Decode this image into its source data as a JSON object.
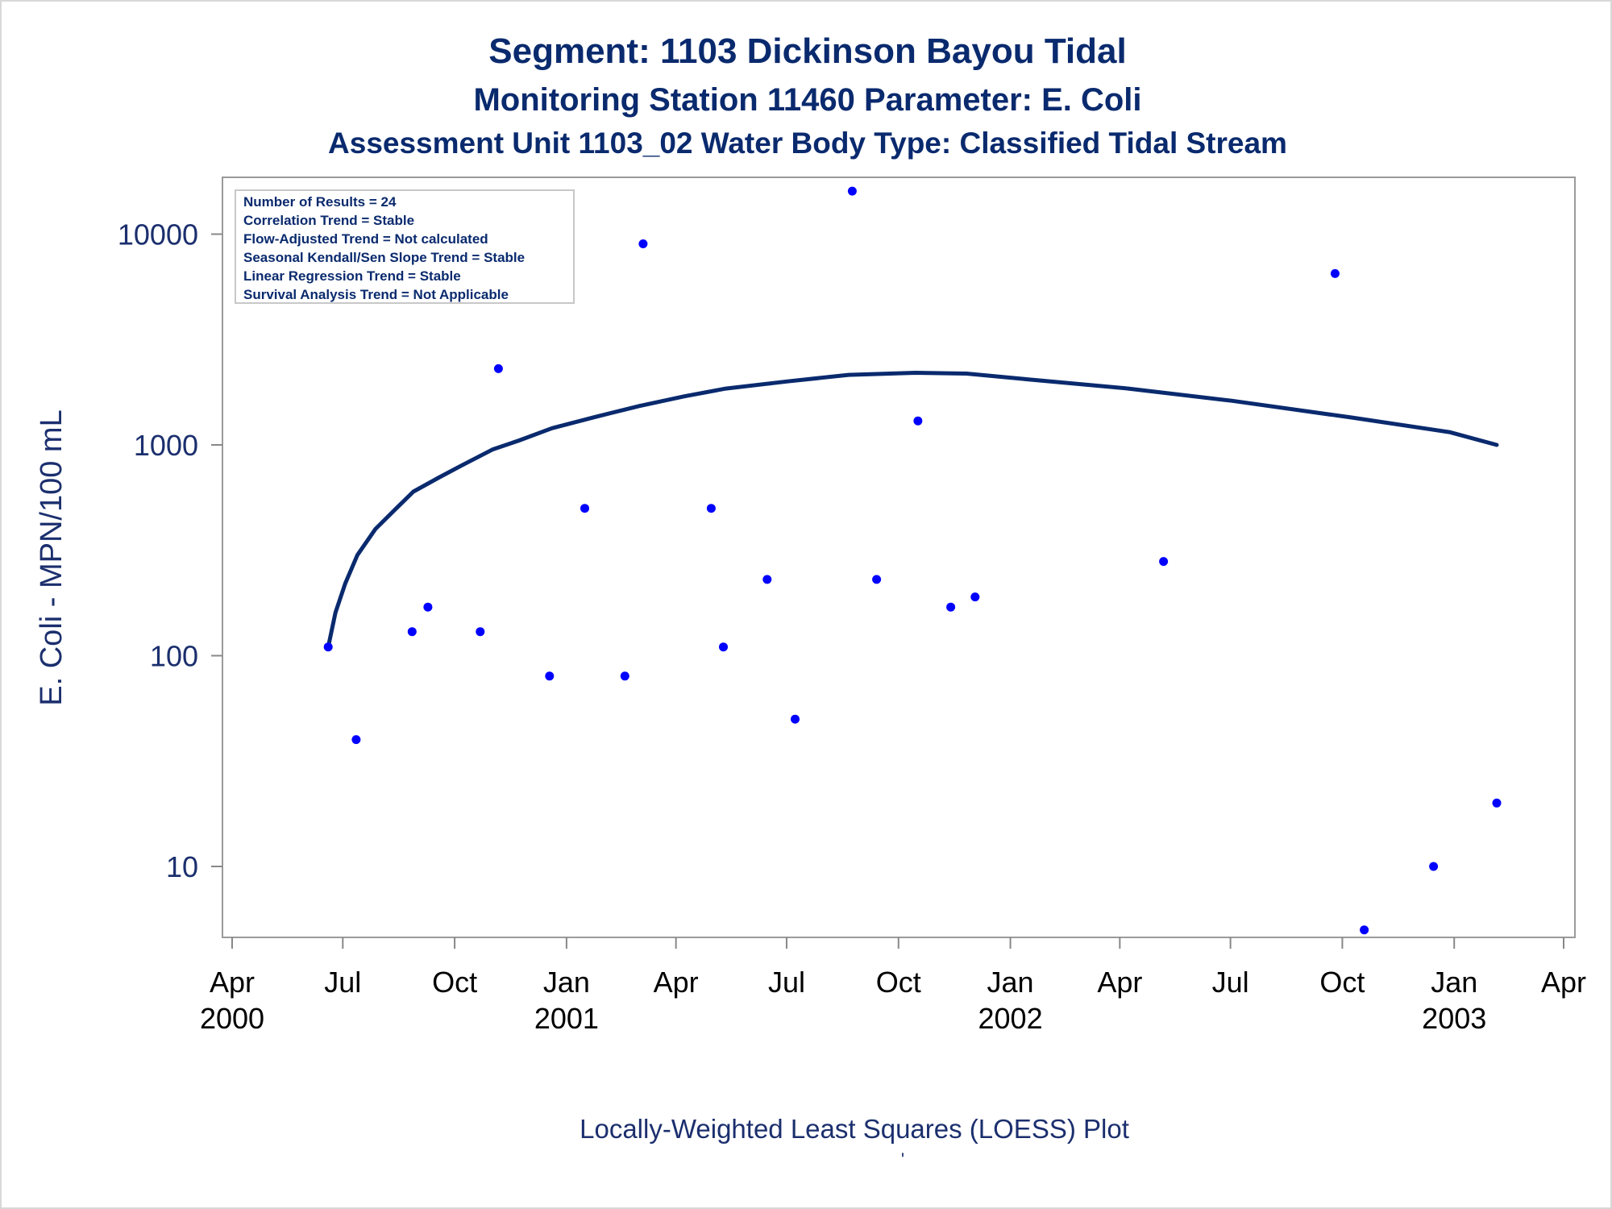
{
  "title": {
    "line1": "Segment: 1103  Dickinson Bayou Tidal",
    "line2": "Monitoring Station 11460 Parameter: E. Coli",
    "line3": "Assessment Unit 1103_02   Water Body Type: Classified Tidal Stream"
  },
  "stats": [
    "Number of Results = 24",
    "Correlation Trend = Stable",
    "Flow-Adjusted Trend = Not calculated",
    "Seasonal Kendall/Sen Slope Trend = Stable",
    "Linear Regression Trend = Stable",
    "Survival Analysis Trend = Not Applicable"
  ],
  "footnote": "Locally-Weighted Least Squares (LOESS) Plot",
  "footnote_mark": "'",
  "colors": {
    "title": "#0a2a6e",
    "axis_text": "#1b2f6e",
    "points": "#0000ff",
    "curve": "#0a2a6e",
    "frame": "#9a9a9a"
  },
  "chart_data": {
    "type": "scatter",
    "ylabel": "E. Coli - MPN/100 mL",
    "yscale": "log",
    "ylim": [
      5,
      18000
    ],
    "y_ticks": [
      10,
      100,
      1000,
      10000
    ],
    "x_range": [
      "2000-04-01",
      "2003-04-01"
    ],
    "x_ticks": [
      {
        "date": "2000-04-01",
        "label": "Apr",
        "year": "2000"
      },
      {
        "date": "2000-07-01",
        "label": "Jul",
        "year": ""
      },
      {
        "date": "2000-10-01",
        "label": "Oct",
        "year": ""
      },
      {
        "date": "2001-01-01",
        "label": "Jan",
        "year": "2001"
      },
      {
        "date": "2001-04-01",
        "label": "Apr",
        "year": ""
      },
      {
        "date": "2001-07-01",
        "label": "Jul",
        "year": ""
      },
      {
        "date": "2001-10-01",
        "label": "Oct",
        "year": ""
      },
      {
        "date": "2002-01-01",
        "label": "Jan",
        "year": "2002"
      },
      {
        "date": "2002-04-01",
        "label": "Apr",
        "year": ""
      },
      {
        "date": "2002-07-01",
        "label": "Jul",
        "year": ""
      },
      {
        "date": "2002-10-01",
        "label": "Oct",
        "year": ""
      },
      {
        "date": "2003-01-01",
        "label": "Jan",
        "year": "2003"
      },
      {
        "date": "2003-04-01",
        "label": "Apr",
        "year": ""
      }
    ],
    "points": [
      {
        "date": "2000-06-19",
        "value": 110
      },
      {
        "date": "2000-07-12",
        "value": 40
      },
      {
        "date": "2000-08-27",
        "value": 130
      },
      {
        "date": "2000-09-09",
        "value": 170
      },
      {
        "date": "2000-10-22",
        "value": 130
      },
      {
        "date": "2000-11-06",
        "value": 2300
      },
      {
        "date": "2000-12-18",
        "value": 80
      },
      {
        "date": "2001-01-16",
        "value": 500
      },
      {
        "date": "2001-02-18",
        "value": 80
      },
      {
        "date": "2001-03-05",
        "value": 9000
      },
      {
        "date": "2001-04-30",
        "value": 500
      },
      {
        "date": "2001-05-10",
        "value": 110
      },
      {
        "date": "2001-06-15",
        "value": 230
      },
      {
        "date": "2001-07-08",
        "value": 50
      },
      {
        "date": "2001-08-24",
        "value": 16000
      },
      {
        "date": "2001-09-13",
        "value": 230
      },
      {
        "date": "2001-10-17",
        "value": 1300
      },
      {
        "date": "2001-11-13",
        "value": 170
      },
      {
        "date": "2001-12-03",
        "value": 190
      },
      {
        "date": "2002-05-07",
        "value": 280
      },
      {
        "date": "2002-09-25",
        "value": 6500
      },
      {
        "date": "2002-10-19",
        "value": 5
      },
      {
        "date": "2002-12-15",
        "value": 10
      },
      {
        "date": "2003-02-05",
        "value": 20
      }
    ],
    "loess": [
      {
        "date": "2000-06-19",
        "value": 110
      },
      {
        "date": "2000-06-25",
        "value": 160
      },
      {
        "date": "2000-07-03",
        "value": 220
      },
      {
        "date": "2000-07-13",
        "value": 300
      },
      {
        "date": "2000-07-28",
        "value": 400
      },
      {
        "date": "2000-08-14",
        "value": 500
      },
      {
        "date": "2000-08-28",
        "value": 600
      },
      {
        "date": "2000-09-18",
        "value": 700
      },
      {
        "date": "2000-10-07",
        "value": 800
      },
      {
        "date": "2000-11-01",
        "value": 950
      },
      {
        "date": "2000-11-23",
        "value": 1050
      },
      {
        "date": "2000-12-20",
        "value": 1200
      },
      {
        "date": "2001-01-23",
        "value": 1350
      },
      {
        "date": "2001-03-02",
        "value": 1530
      },
      {
        "date": "2001-04-08",
        "value": 1700
      },
      {
        "date": "2001-05-12",
        "value": 1850
      },
      {
        "date": "2001-07-01",
        "value": 2000
      },
      {
        "date": "2001-08-21",
        "value": 2150
      },
      {
        "date": "2001-10-15",
        "value": 2200
      },
      {
        "date": "2001-11-26",
        "value": 2180
      },
      {
        "date": "2002-01-14",
        "value": 2050
      },
      {
        "date": "2002-04-08",
        "value": 1850
      },
      {
        "date": "2002-07-02",
        "value": 1620
      },
      {
        "date": "2002-10-08",
        "value": 1350
      },
      {
        "date": "2002-12-28",
        "value": 1150
      },
      {
        "date": "2003-02-05",
        "value": 1000
      }
    ]
  }
}
